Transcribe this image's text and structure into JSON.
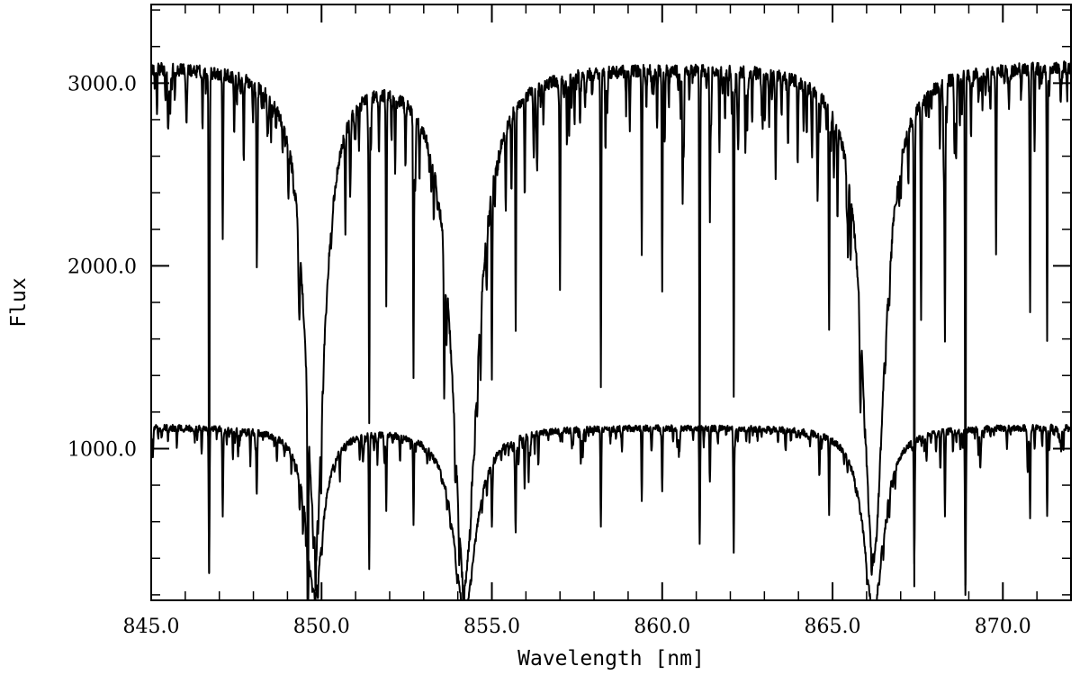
{
  "chart_data": {
    "type": "line",
    "title": "",
    "xlabel": "Wavelength [nm]",
    "ylabel": "Flux",
    "xlim": [
      845.0,
      872.0
    ],
    "ylim": [
      170,
      3430
    ],
    "grid": false,
    "legend": "none",
    "line_color": "#000000",
    "x_ticks": [
      {
        "value": 845,
        "label": "845.0"
      },
      {
        "value": 850,
        "label": "850.0"
      },
      {
        "value": 855,
        "label": "855.0"
      },
      {
        "value": 860,
        "label": "860.0"
      },
      {
        "value": 865,
        "label": "865.0"
      },
      {
        "value": 870,
        "label": "870.0"
      }
    ],
    "y_ticks": [
      {
        "value": 1000,
        "label": "1000.0"
      },
      {
        "value": 2000,
        "label": "2000.0"
      },
      {
        "value": 3000,
        "label": "3000.0"
      }
    ],
    "x_minor_step": 1,
    "y_minor_step": 200,
    "series": [
      {
        "continuum": 3100,
        "noise": 70,
        "line_depth_scale": 1.0,
        "broad_lines": [
          {
            "center": 849.8,
            "depth": 2500,
            "width": 0.35
          },
          {
            "center": 854.2,
            "depth": 2800,
            "width": 0.45
          },
          {
            "center": 866.2,
            "depth": 2700,
            "width": 0.4
          }
        ],
        "narrow_lines": [
          {
            "center": 846.7,
            "depth": 2750
          },
          {
            "center": 847.1,
            "depth": 900
          },
          {
            "center": 848.1,
            "depth": 900
          },
          {
            "center": 849.6,
            "depth": 1400
          },
          {
            "center": 850.7,
            "depth": 550
          },
          {
            "center": 851.4,
            "depth": 1800
          },
          {
            "center": 851.9,
            "depth": 1150
          },
          {
            "center": 852.7,
            "depth": 1300
          },
          {
            "center": 853.6,
            "depth": 800
          },
          {
            "center": 855.0,
            "depth": 1000
          },
          {
            "center": 855.7,
            "depth": 1200
          },
          {
            "center": 857.0,
            "depth": 750
          },
          {
            "center": 858.2,
            "depth": 1700
          },
          {
            "center": 859.4,
            "depth": 1000
          },
          {
            "center": 860.0,
            "depth": 1200
          },
          {
            "center": 860.6,
            "depth": 700
          },
          {
            "center": 861.1,
            "depth": 2100
          },
          {
            "center": 861.4,
            "depth": 800
          },
          {
            "center": 862.1,
            "depth": 1750
          },
          {
            "center": 864.9,
            "depth": 1100
          },
          {
            "center": 867.4,
            "depth": 2550
          },
          {
            "center": 867.6,
            "depth": 1200
          },
          {
            "center": 868.3,
            "depth": 1400
          },
          {
            "center": 868.9,
            "depth": 2800
          },
          {
            "center": 869.8,
            "depth": 1000
          },
          {
            "center": 870.8,
            "depth": 1300
          },
          {
            "center": 871.3,
            "depth": 1400
          }
        ]
      },
      {
        "continuum": 1120,
        "noise": 35,
        "line_depth_scale": 0.36,
        "broad_lines": [
          {
            "center": 849.8,
            "depth": 900,
            "width": 0.3
          },
          {
            "center": 854.2,
            "depth": 1000,
            "width": 0.4
          },
          {
            "center": 866.2,
            "depth": 1000,
            "width": 0.35
          }
        ],
        "narrow_lines": [
          {
            "center": 846.7,
            "depth": 780
          },
          {
            "center": 847.1,
            "depth": 300
          },
          {
            "center": 848.1,
            "depth": 300
          },
          {
            "center": 849.6,
            "depth": 500
          },
          {
            "center": 851.4,
            "depth": 720
          },
          {
            "center": 851.9,
            "depth": 400
          },
          {
            "center": 852.7,
            "depth": 450
          },
          {
            "center": 855.0,
            "depth": 350
          },
          {
            "center": 855.7,
            "depth": 450
          },
          {
            "center": 858.2,
            "depth": 550
          },
          {
            "center": 859.4,
            "depth": 300
          },
          {
            "center": 860.0,
            "depth": 350
          },
          {
            "center": 861.1,
            "depth": 650
          },
          {
            "center": 861.4,
            "depth": 300
          },
          {
            "center": 862.1,
            "depth": 550
          },
          {
            "center": 864.9,
            "depth": 400
          },
          {
            "center": 867.4,
            "depth": 650
          },
          {
            "center": 868.3,
            "depth": 450
          },
          {
            "center": 868.9,
            "depth": 870
          },
          {
            "center": 870.8,
            "depth": 450
          },
          {
            "center": 871.3,
            "depth": 500
          }
        ]
      }
    ]
  }
}
